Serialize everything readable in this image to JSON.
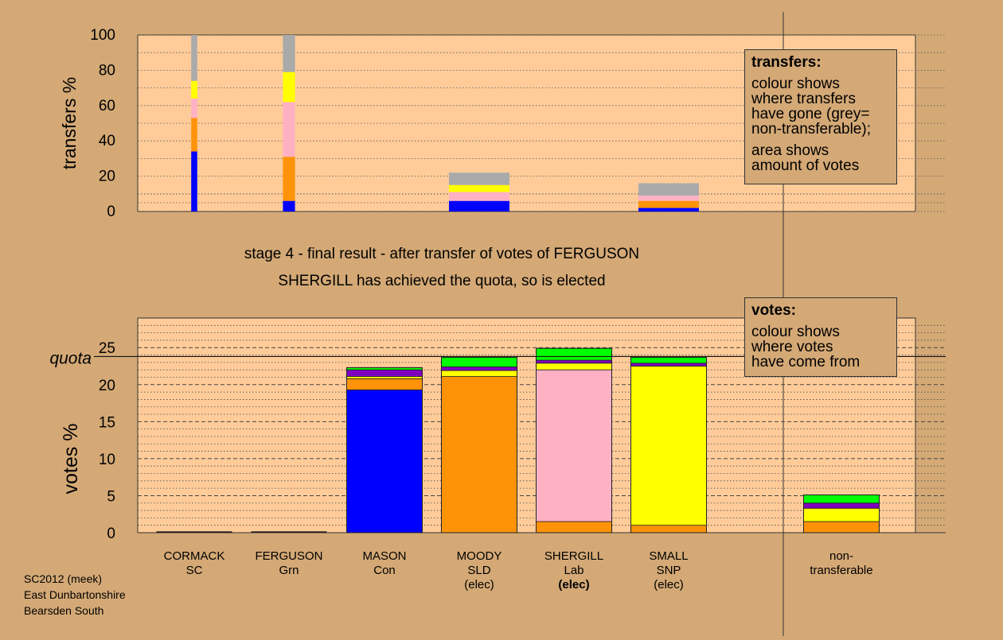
{
  "captions": {
    "line1": "stage 4 - final result - after transfer of votes of FERGUSON",
    "line2": "SHERGILL has achieved the quota, so is elected"
  },
  "legend_transfers": {
    "heading": "transfers:",
    "para1": [
      "colour shows",
      "where transfers",
      "have gone (grey=",
      "non-transferable);"
    ],
    "para2": [
      "area shows",
      "amount of votes"
    ]
  },
  "legend_votes": {
    "heading": "votes:",
    "para1": [
      "colour shows",
      "where votes",
      "have come from"
    ]
  },
  "credit": [
    "SC2012 (meek)",
    "East Dunbartonshire",
    "Bearsden South"
  ],
  "colors": {
    "Con": "#0000ff",
    "SLD": "#ff9308",
    "Lab": "#ffb1c4",
    "SNP": "#ffff00",
    "Grn": "#8000c0",
    "SC": "#00ff00",
    "NonTransferable": "#aaaaaa",
    "plot_bg": "#ffcc99",
    "page_bg": "#d4a976"
  },
  "chart_data": [
    {
      "type": "bar",
      "stacked": true,
      "ylabel": "transfers %",
      "ylim": [
        0,
        100
      ],
      "yticks": [
        0,
        20,
        40,
        60,
        80,
        100
      ],
      "categories": [
        "CORMACK",
        "FERGUSON",
        "MASON",
        "MOODY",
        "SHERGILL",
        "SMALL"
      ],
      "bar_width_share": [
        0.08,
        0.16,
        0,
        0.8,
        0,
        0.8
      ],
      "series": [
        {
          "color_key": "Con",
          "values": [
            34,
            6,
            0,
            6,
            0,
            2
          ]
        },
        {
          "color_key": "SLD",
          "values": [
            19,
            25,
            0,
            0,
            0,
            4
          ]
        },
        {
          "color_key": "Lab",
          "values": [
            11,
            31,
            0,
            5,
            0,
            3
          ]
        },
        {
          "color_key": "SNP",
          "values": [
            10,
            17,
            0,
            4,
            0,
            0
          ]
        },
        {
          "color_key": "NonTransferable",
          "values": [
            26,
            21,
            0,
            7,
            0,
            7
          ]
        }
      ],
      "grid": "dotted horizontal"
    },
    {
      "type": "bar",
      "stacked": true,
      "ylabel": "votes %",
      "ylim": [
        0,
        29
      ],
      "yticks": [
        0,
        5,
        10,
        15,
        20,
        25
      ],
      "quota": 23.8,
      "quota_label": "quota",
      "categories": [
        {
          "name": "CORMACK",
          "party": "SC",
          "status": ""
        },
        {
          "name": "FERGUSON",
          "party": "Grn",
          "status": ""
        },
        {
          "name": "MASON",
          "party": "Con",
          "status": ""
        },
        {
          "name": "MOODY",
          "party": "SLD",
          "status": "(elec)"
        },
        {
          "name": "SHERGILL",
          "party": "Lab",
          "status": "(elec)",
          "status_bold": true
        },
        {
          "name": "SMALL",
          "party": "SNP",
          "status": "(elec)"
        },
        {
          "name": "non-\ntransferable",
          "party": "",
          "status": ""
        }
      ],
      "series": [
        {
          "color_key": "Con",
          "values": [
            0,
            0,
            19.3,
            0,
            0,
            0,
            0
          ]
        },
        {
          "color_key": "Lab",
          "values": [
            0,
            0,
            0,
            0,
            20.5,
            0,
            0
          ]
        },
        {
          "color_key": "SNP",
          "values": [
            0,
            0,
            0.3,
            0.8,
            0.9,
            21.5,
            1.8
          ]
        },
        {
          "color_key": "SLD",
          "values": [
            0,
            0,
            1.5,
            21.1,
            1.5,
            1.0,
            1.5
          ]
        },
        {
          "color_key": "Grn",
          "values": [
            0,
            0,
            0.9,
            0.5,
            0.4,
            0.4,
            0.7
          ]
        },
        {
          "color_key": "SC",
          "values": [
            0,
            0,
            0.3,
            1.3,
            1.6,
            0.8,
            1.1
          ]
        }
      ],
      "series_order": [
        "Con",
        "SLD",
        "Lab",
        "SNP",
        "Grn",
        "SC"
      ],
      "grid": "dashed at 5, dotted at 1"
    }
  ]
}
